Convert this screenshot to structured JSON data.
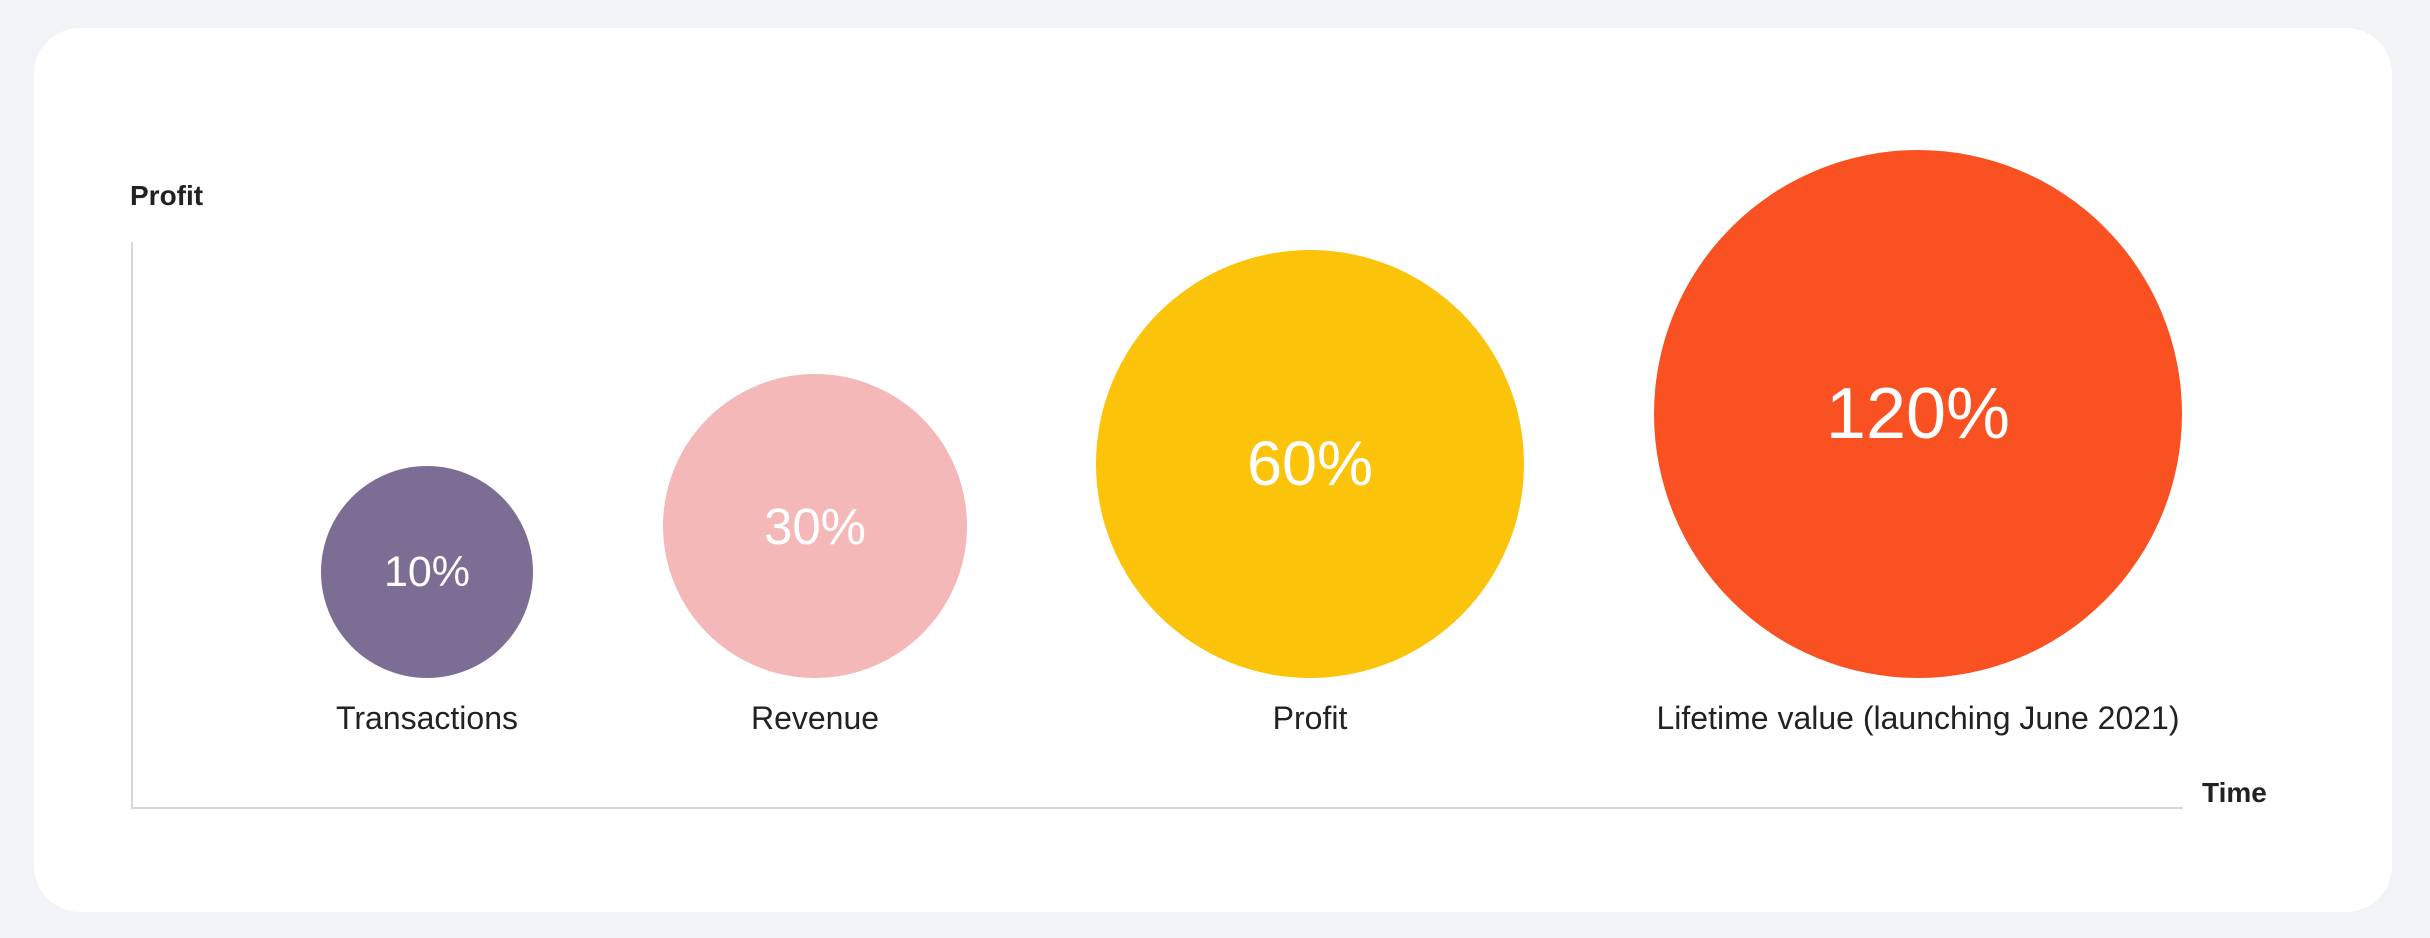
{
  "chart_data": {
    "type": "bubble",
    "ylabel": "Profit",
    "xlabel": "Time",
    "categories": [
      "Transactions",
      "Revenue",
      "Profit",
      "Lifetime value (launching June 2021)"
    ],
    "values": [
      10,
      30,
      60,
      120
    ],
    "value_labels": [
      "10%",
      "30%",
      "60%",
      "120%"
    ],
    "colors": [
      "#7b6d93",
      "#f4b8b8",
      "#fcc30b",
      "#f95122"
    ],
    "grid": false
  }
}
